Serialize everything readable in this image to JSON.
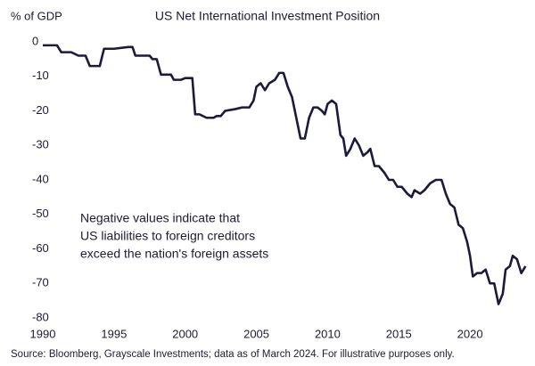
{
  "chart_data": {
    "type": "line",
    "title": "US Net International Investment Position",
    "y_label": "% of GDP",
    "annotation": [
      "Negative values indicate that",
      "US liabilities to foreign creditors",
      "exceed the nation's foreign assets"
    ],
    "source": "Source: Bloomberg, Grayscale Investments; data as of March 2024. For illustrative purposes only.",
    "color": "#1c1a3a",
    "x": [
      1990,
      1991,
      1991.3,
      1992,
      1992.5,
      1993,
      1993.3,
      1994,
      1994.3,
      1995,
      1996,
      1996.3,
      1996.5,
      1997,
      1997.5,
      1997.7,
      1998,
      1998.3,
      1999,
      1999.2,
      1999.7,
      2000,
      2000.5,
      2000.7,
      2001,
      2001.5,
      2002,
      2002.2,
      2002.5,
      2002.8,
      2003.5,
      2004,
      2004.5,
      2004.8,
      2005,
      2005.3,
      2005.6,
      2005.9,
      2006.3,
      2006.6,
      2006.9,
      2007.2,
      2007.5,
      2007.8,
      2008.1,
      2008.4,
      2008.7,
      2009,
      2009.3,
      2009.6,
      2009.8,
      2010,
      2010.3,
      2010.6,
      2010.9,
      2011.1,
      2011.3,
      2011.6,
      2011.9,
      2012.2,
      2012.5,
      2012.8,
      2013,
      2013.3,
      2013.6,
      2014,
      2014.3,
      2014.6,
      2014.9,
      2015.2,
      2015.6,
      2015.9,
      2016.1,
      2016.5,
      2016.8,
      2017.2,
      2017.6,
      2018,
      2018.3,
      2018.6,
      2018.9,
      2019.2,
      2019.5,
      2019.8,
      2020,
      2020.2,
      2020.5,
      2020.8,
      2021.1,
      2021.4,
      2021.7,
      2022,
      2022.3,
      2022.5,
      2022.8,
      2023,
      2023.3,
      2023.6,
      2023.9
    ],
    "values": [
      -1,
      -1,
      -3,
      -3,
      -4,
      -4,
      -7,
      -7,
      -2,
      -2,
      -1.5,
      -1.5,
      -4,
      -4,
      -4,
      -5,
      -5,
      -9.5,
      -9.5,
      -11,
      -11,
      -10.5,
      -10.5,
      -21,
      -21,
      -22,
      -22,
      -21.5,
      -21.5,
      -20,
      -19.5,
      -19,
      -19,
      -17,
      -13,
      -12,
      -14,
      -12,
      -11,
      -9,
      -9,
      -13,
      -16,
      -22,
      -28,
      -28,
      -22,
      -19,
      -19,
      -20,
      -21,
      -18,
      -17,
      -18,
      -27,
      -28,
      -33,
      -31,
      -28,
      -30,
      -33,
      -32,
      -31,
      -36,
      -36,
      -38,
      -40,
      -40,
      -42,
      -42,
      -44,
      -45,
      -43,
      -44,
      -43,
      -41,
      -40,
      -40,
      -44,
      -47,
      -48,
      -53,
      -54,
      -58,
      -62,
      -68,
      -67,
      -67,
      -66,
      -70,
      -70,
      -76,
      -73,
      -66,
      -65,
      -62,
      -63,
      -67,
      -65
    ],
    "xlim": [
      1990,
      2024
    ],
    "ylim": [
      -80,
      0
    ],
    "xticks": [
      1990,
      1995,
      2000,
      2005,
      2010,
      2015,
      2020
    ],
    "yticks": [
      0,
      -10,
      -20,
      -30,
      -40,
      -50,
      -60,
      -70,
      -80
    ],
    "grid": false
  }
}
